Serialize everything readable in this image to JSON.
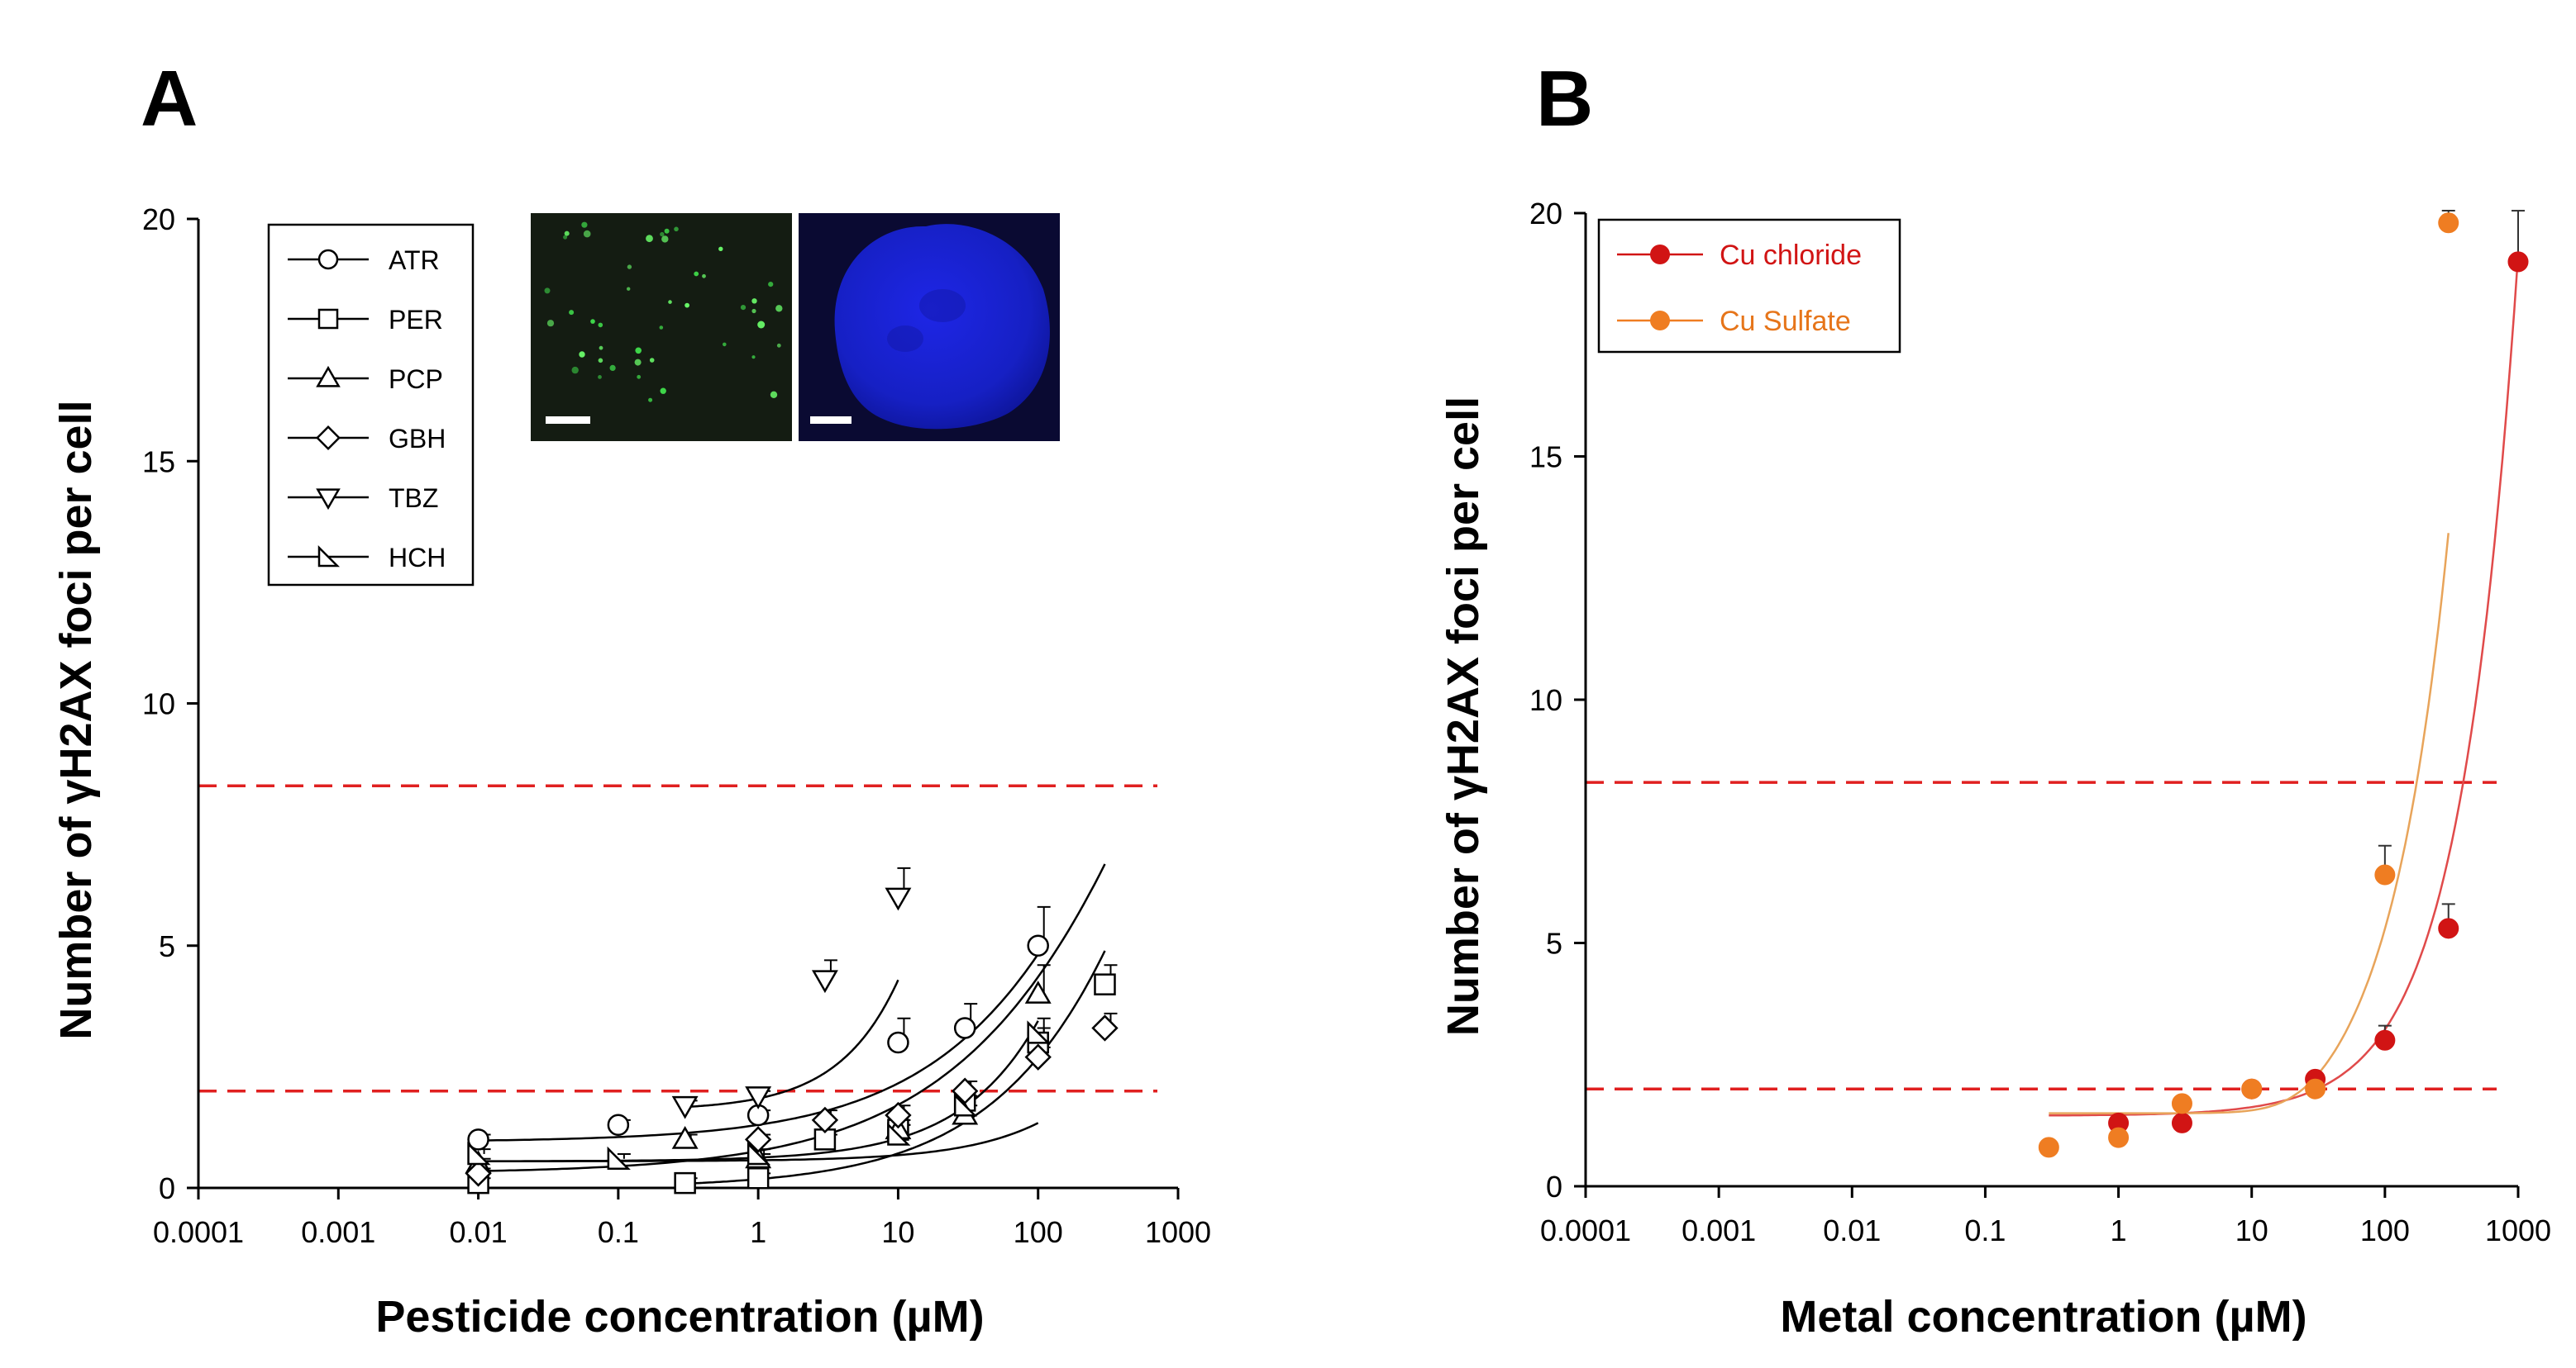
{
  "chart_data": [
    {
      "panel": "A",
      "type": "scatter",
      "xlabel": "Pesticide concentration (µM)",
      "ylabel": "Number of γH2AX foci per cell",
      "xscale": "log",
      "xlim": [
        0.0001,
        1000
      ],
      "ylim": [
        0,
        20
      ],
      "xticks": [
        "0.0001",
        "0.001",
        "0.01",
        "0.1",
        "1",
        "10",
        "100",
        "1000"
      ],
      "yticks": [
        "0",
        "5",
        "10",
        "15",
        "20"
      ],
      "reference_lines": [
        2.0,
        8.3
      ],
      "reference_line_color": "#e02020",
      "legend_position": "top-left",
      "has_inset_images": true,
      "series": [
        {
          "name": "ATR",
          "marker": "circle",
          "x": [
            0.01,
            0.1,
            1,
            10,
            30,
            100
          ],
          "y": [
            1.0,
            1.3,
            1.5,
            3.0,
            3.3,
            5.0
          ],
          "err": [
            0.1,
            0.1,
            0.1,
            0.5,
            0.5,
            0.8
          ]
        },
        {
          "name": "PER",
          "marker": "square",
          "x": [
            0.01,
            0.3,
            1,
            3,
            10,
            30,
            100,
            300
          ],
          "y": [
            0.1,
            0.1,
            0.2,
            1.0,
            1.2,
            1.8,
            3.0,
            4.2
          ],
          "err": [
            0.1,
            0.1,
            0.1,
            0.1,
            0.2,
            0.2,
            0.3,
            0.4
          ]
        },
        {
          "name": "PCP",
          "marker": "triangle-up",
          "x": [
            0.01,
            0.3,
            1,
            10,
            30,
            100
          ],
          "y": [
            0.5,
            1.0,
            0.6,
            1.2,
            1.5,
            4.0
          ],
          "err": [
            0.1,
            0.1,
            0.1,
            0.1,
            0.2,
            0.6
          ]
        },
        {
          "name": "GBH",
          "marker": "diamond",
          "x": [
            0.01,
            1,
            3,
            10,
            30,
            100,
            300
          ],
          "y": [
            0.3,
            1.0,
            1.4,
            1.5,
            2.0,
            2.7,
            3.3
          ],
          "err": [
            0.1,
            0.1,
            0.2,
            0.2,
            0.2,
            0.2,
            0.3
          ]
        },
        {
          "name": "TBZ",
          "marker": "triangle-down",
          "x": [
            0.3,
            1,
            3,
            10
          ],
          "y": [
            1.7,
            1.9,
            4.3,
            6.0
          ],
          "err": [
            0.1,
            0.1,
            0.4,
            0.6
          ]
        },
        {
          "name": "HCH",
          "marker": "right-triangle",
          "x": [
            0.01,
            0.1,
            1,
            10,
            30,
            100
          ],
          "y": [
            0.7,
            0.6,
            0.7,
            1.1,
            1.7,
            3.2
          ],
          "err": [
            0.1,
            0.1,
            0.1,
            0.2,
            0.2,
            0.3
          ]
        }
      ]
    },
    {
      "panel": "B",
      "type": "scatter",
      "xlabel": "Metal concentration (µM)",
      "ylabel": "Number of γH2AX foci per cell",
      "xscale": "log",
      "xlim": [
        0.0001,
        1000
      ],
      "ylim": [
        0,
        20
      ],
      "xticks": [
        "0.0001",
        "0.001",
        "0.01",
        "0.1",
        "1",
        "10",
        "100",
        "1000"
      ],
      "yticks": [
        "0",
        "5",
        "10",
        "15",
        "20"
      ],
      "reference_lines": [
        2.0,
        8.3
      ],
      "reference_line_color": "#e02020",
      "legend_position": "top-left",
      "series": [
        {
          "name": "Cu chloride",
          "color": "#d11414",
          "x": [
            1,
            3,
            10,
            30,
            100,
            300,
            1000
          ],
          "y": [
            1.3,
            1.3,
            2.0,
            2.2,
            3.0,
            5.3,
            19.0
          ],
          "err": [
            0.1,
            0.1,
            0.1,
            0.1,
            0.3,
            0.5,
            1.5
          ]
        },
        {
          "name": "Cu Sulfate",
          "color": "#ef7d22",
          "x": [
            0.3,
            1,
            3,
            10,
            30,
            100,
            300
          ],
          "y": [
            0.8,
            1.0,
            1.7,
            2.0,
            2.0,
            6.4,
            19.8
          ],
          "err": [
            0.05,
            0.05,
            0.1,
            0.1,
            0.1,
            0.6,
            1.3
          ]
        }
      ]
    }
  ]
}
